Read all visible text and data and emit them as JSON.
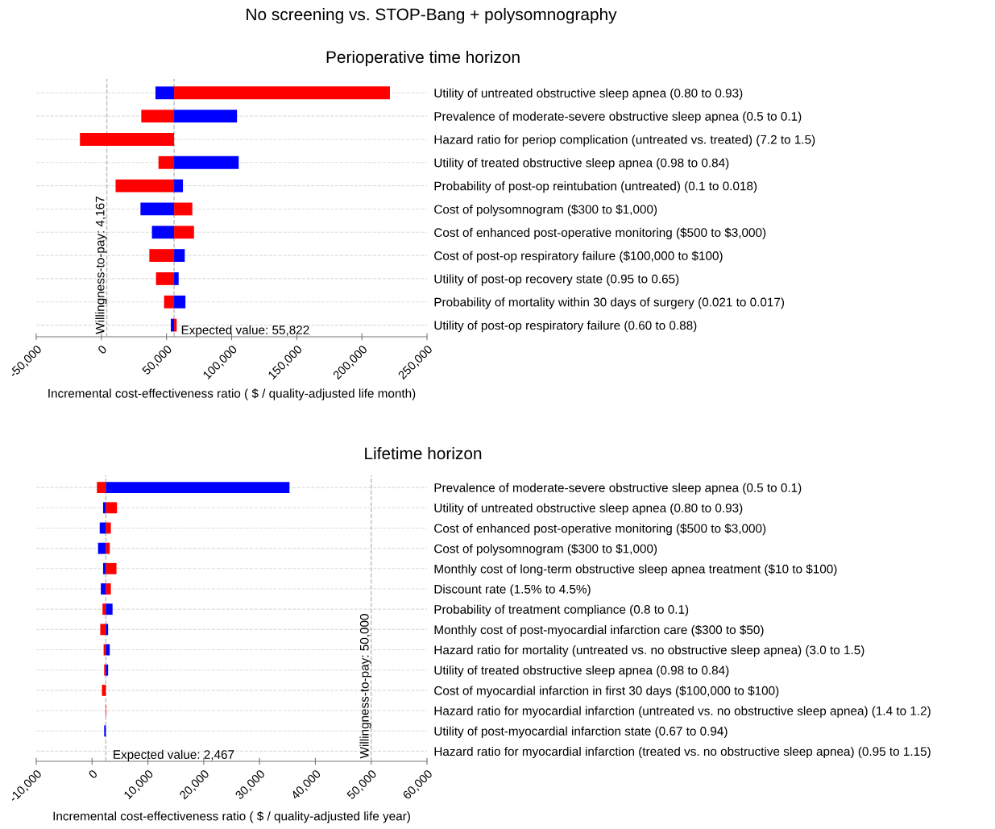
{
  "chart_data": [
    {
      "type": "bar",
      "orientation": "horizontal",
      "title": "No screening vs. STOP-Bang + polysomnography",
      "subtitle": "Perioperative time horizon",
      "xlabel": "Incremental cost-effectiveness ratio ( $ / quality-adjusted life month)",
      "categories": [
        "Utility of untreated obstructive sleep apnea (0.80 to 0.93)",
        "Prevalence of moderate-severe obstructive sleep apnea (0.5 to 0.1)",
        "Hazard ratio for periop complication (untreated vs. treated) (7.2 to 1.5)",
        "Utility of treated obstructive sleep apnea (0.98 to 0.84)",
        "Probability of post-op reintubation (untreated) (0.1 to 0.018)",
        "Cost of polysomnogram ($300 to $1,000)",
        "Cost of enhanced post-operative monitoring ($500 to $3,000)",
        "Cost of post-op respiratory failure ($100,000 to $100)",
        "Utility of post-op recovery state (0.95 to 0.65)",
        "Probability of mortality within 30 days of surgery (0.021 to 0.017)",
        "Utility of post-op respiratory failure (0.60 to 0.88)"
      ],
      "series": [
        {
          "color": "#ff0000",
          "base": [
            55822,
            55822,
            55822,
            55822,
            55822,
            55822,
            55822,
            55822,
            55822,
            55822,
            55822
          ],
          "values": [
            165700,
            -25200,
            -72300,
            -12000,
            -44900,
            14000,
            15300,
            -19000,
            -13900,
            -7700,
            2000
          ]
        },
        {
          "color": "#0000ff",
          "base": [
            55822,
            55822,
            null,
            55822,
            55822,
            55822,
            55822,
            55822,
            55822,
            55822,
            55822
          ],
          "values": [
            -14300,
            48300,
            null,
            49600,
            6800,
            -25800,
            -17000,
            8200,
            3500,
            8700,
            -2500
          ]
        }
      ],
      "xlim": [
        -50000,
        250000
      ],
      "xticks": [
        {
          "value": -50000,
          "label": "-50,000"
        },
        {
          "value": 0,
          "label": "0"
        },
        {
          "value": 50000,
          "label": "50,000"
        },
        {
          "value": 100000,
          "label": "100,000"
        },
        {
          "value": 150000,
          "label": "150,000"
        },
        {
          "value": 200000,
          "label": "200,000"
        },
        {
          "value": 250000,
          "label": "250,000"
        }
      ],
      "ref_lines": [
        {
          "axis": "x",
          "value": 4167,
          "label": "Willingness-to-pay: 4,167",
          "line_style": "dashed",
          "color": "#bbbbbb"
        },
        {
          "axis": "x",
          "value": 55822,
          "label": "Expected value: 55,822",
          "line_style": "dashed",
          "color": "#bbbbbb"
        }
      ],
      "grid": "y",
      "legend": false
    },
    {
      "type": "bar",
      "orientation": "horizontal",
      "subtitle": "Lifetime horizon",
      "xlabel": "Incremental cost-effectiveness ratio ( $ / quality-adjusted life year)",
      "categories": [
        "Prevalence of moderate-severe obstructive sleep apnea (0.5 to 0.1)",
        "Utility of untreated obstructive sleep apnea (0.80 to 0.93)",
        "Cost of enhanced post-operative monitoring ($500 to $3,000)",
        "Cost of polysomnogram ($300 to $1,000)",
        "Monthly cost of long-term obstructive sleep apnea treatment ($10 to $100)",
        "Discount rate (1.5% to 4.5%)",
        "Probability of treatment compliance (0.8 to 0.1)",
        "Monthly cost of post-myocardial infarction care ($300 to $50)",
        "Hazard ratio for mortality (untreated vs. no obstructive sleep apnea) (3.0 to 1.5)",
        "Utility of treated obstructive sleep apnea (0.98 to 0.84)",
        "Cost of myocardial infarction in first 30 days ($100,000 to $100)",
        "Hazard ratio for myocardial infarction (untreated vs. no obstructive sleep apnea) (1.4 to 1.2)",
        "Utility of post-myocardial infarction state (0.67 to 0.94)",
        "Hazard ratio for myocardial infarction (treated vs. no obstructive sleep apnea) (0.95 to 1.15)"
      ],
      "series": [
        {
          "color": "#ff0000",
          "base": [
            2467,
            2467,
            2467,
            2467,
            2467,
            2467,
            2467,
            2467,
            2467,
            2467,
            2467,
            2467,
            null,
            null
          ],
          "values": [
            -1600,
            2000,
            900,
            700,
            1900,
            900,
            -600,
            -1000,
            -400,
            -300,
            -700,
            100,
            null,
            null
          ]
        },
        {
          "color": "#0000ff",
          "base": [
            2467,
            2467,
            2467,
            2467,
            2467,
            2467,
            2467,
            2467,
            2467,
            2467,
            null,
            null,
            2467,
            null
          ],
          "values": [
            32900,
            -500,
            -1100,
            -1400,
            -500,
            -900,
            1200,
            400,
            700,
            400,
            null,
            null,
            -300,
            null
          ]
        }
      ],
      "xlim": [
        -10000,
        60000
      ],
      "xticks": [
        {
          "value": -10000,
          "label": "-10,000"
        },
        {
          "value": 0,
          "label": "0"
        },
        {
          "value": 10000,
          "label": "10,000"
        },
        {
          "value": 20000,
          "label": "20,000"
        },
        {
          "value": 30000,
          "label": "30,000"
        },
        {
          "value": 40000,
          "label": "40,000"
        },
        {
          "value": 50000,
          "label": "50,000"
        },
        {
          "value": 60000,
          "label": "60,000"
        }
      ],
      "ref_lines": [
        {
          "axis": "x",
          "value": 50000,
          "label": "Willingness-to-pay: 50,000",
          "line_style": "dashed",
          "color": "#bbbbbb"
        },
        {
          "axis": "x",
          "value": 2467,
          "label": "Expected value: 2,467",
          "line_style": "dashed",
          "color": "#bbbbbb"
        }
      ],
      "grid": "y",
      "legend": false
    }
  ]
}
